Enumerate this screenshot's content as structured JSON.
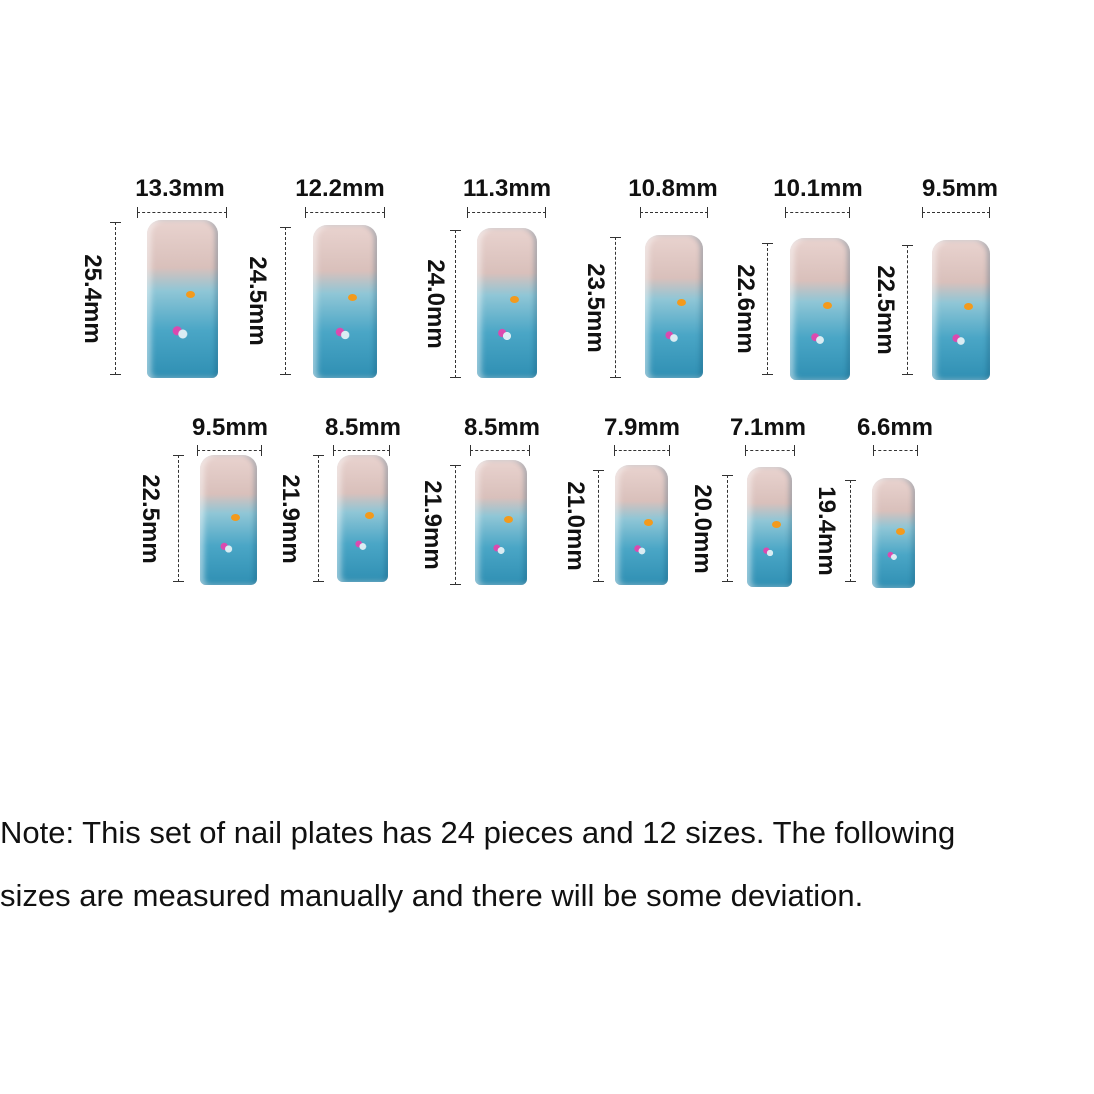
{
  "nails": [
    {
      "width": "13.3mm",
      "length": "25.4mm"
    },
    {
      "width": "12.2mm",
      "length": "24.5mm"
    },
    {
      "width": "11.3mm",
      "length": "24.0mm"
    },
    {
      "width": "10.8mm",
      "length": "23.5mm"
    },
    {
      "width": "10.1mm",
      "length": "22.6mm"
    },
    {
      "width": "9.5mm",
      "length": "22.5mm"
    },
    {
      "width": "9.5mm",
      "length": "22.5mm"
    },
    {
      "width": "8.5mm",
      "length": "21.9mm"
    },
    {
      "width": "8.5mm",
      "length": "21.9mm"
    },
    {
      "width": "7.9mm",
      "length": "21.0mm"
    },
    {
      "width": "7.1mm",
      "length": "20.0mm"
    },
    {
      "width": "6.6mm",
      "length": "19.4mm"
    }
  ],
  "note": {
    "line1": "Note: This set of nail plates has 24 pieces and 12 sizes. The following",
    "line2": "sizes are measured manually and there will be some deviation."
  }
}
